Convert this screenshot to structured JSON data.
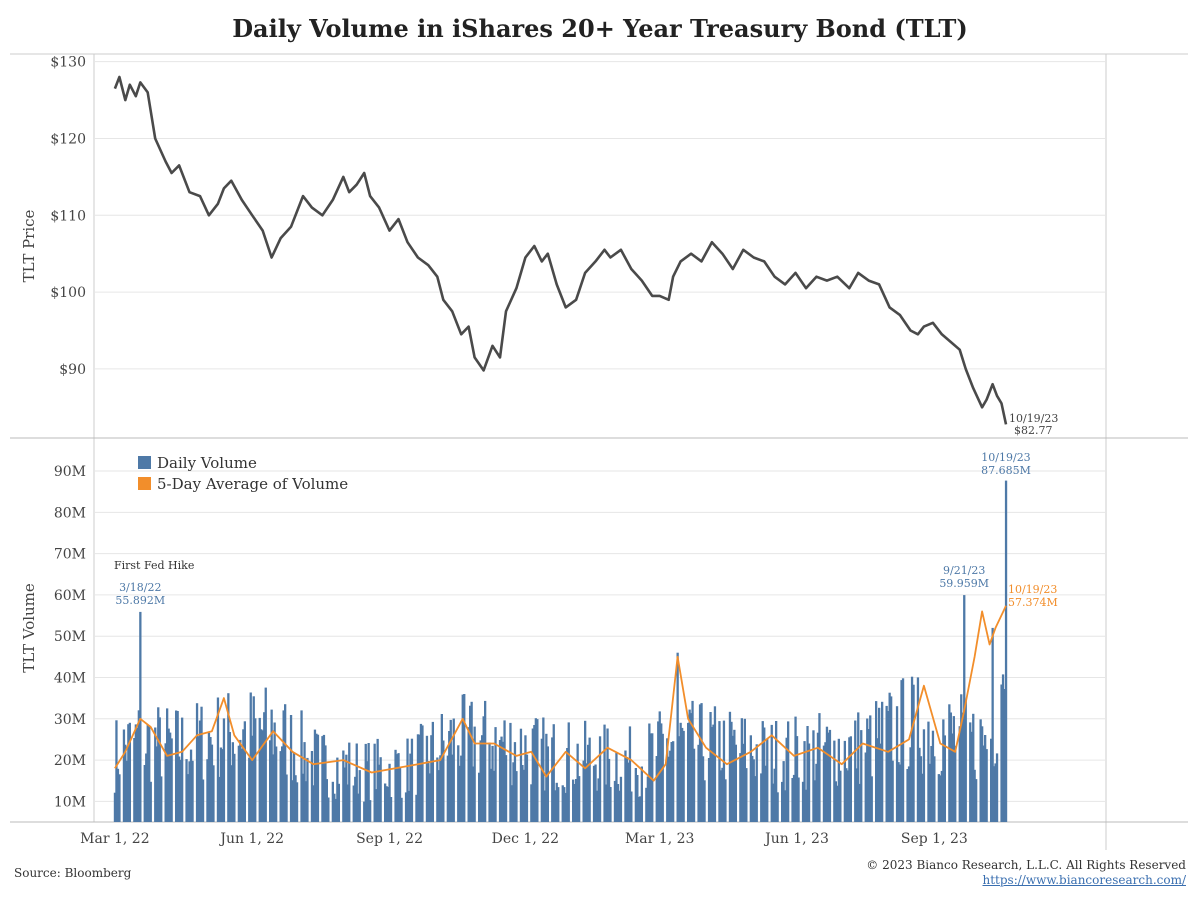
{
  "title": "Daily Volume in iShares 20+ Year Treasury Bond (TLT)",
  "footer": {
    "source": "Source: Bloomberg",
    "copyright": "© 2023 Bianco Research, L.L.C. All Rights Reserved",
    "url": "https://www.biancoresearch.com/"
  },
  "colors": {
    "price_line": "#4a4a4a",
    "daily_volume": "#4e79a7",
    "avg_volume": "#f28e2b",
    "grid": "#e6e6e6",
    "divider": "#bbbbbb"
  },
  "chart_data": [
    {
      "type": "line",
      "ylabel": "TLT Price",
      "ylim": [
        81,
        131
      ],
      "yticks": [
        90,
        100,
        110,
        120,
        130
      ],
      "ytick_labels": [
        "$90",
        "$100",
        "$110",
        "$120",
        "$130"
      ],
      "x_ticks": [
        "Mar 1, 22",
        "Jun 1, 22",
        "Sep 1, 22",
        "Dec 1, 22",
        "Mar 1, 23",
        "Jun 1, 23",
        "Sep 1, 23"
      ],
      "series": [
        {
          "points": [
            [
              "2022-03-01",
              126.5
            ],
            [
              "2022-03-04",
              128.0
            ],
            [
              "2022-03-08",
              125.0
            ],
            [
              "2022-03-11",
              127.0
            ],
            [
              "2022-03-15",
              125.5
            ],
            [
              "2022-03-18",
              127.3
            ],
            [
              "2022-03-23",
              126.0
            ],
            [
              "2022-03-28",
              120.0
            ],
            [
              "2022-04-04",
              117.0
            ],
            [
              "2022-04-08",
              115.5
            ],
            [
              "2022-04-13",
              116.5
            ],
            [
              "2022-04-20",
              113.0
            ],
            [
              "2022-04-27",
              112.5
            ],
            [
              "2022-05-03",
              110.0
            ],
            [
              "2022-05-09",
              111.5
            ],
            [
              "2022-05-13",
              113.5
            ],
            [
              "2022-05-18",
              114.5
            ],
            [
              "2022-05-25",
              112.0
            ],
            [
              "2022-06-01",
              110.0
            ],
            [
              "2022-06-08",
              108.0
            ],
            [
              "2022-06-14",
              104.5
            ],
            [
              "2022-06-20",
              107.0
            ],
            [
              "2022-06-27",
              108.5
            ],
            [
              "2022-07-05",
              112.5
            ],
            [
              "2022-07-11",
              111.0
            ],
            [
              "2022-07-18",
              110.0
            ],
            [
              "2022-07-25",
              112.0
            ],
            [
              "2022-08-01",
              115.0
            ],
            [
              "2022-08-05",
              113.0
            ],
            [
              "2022-08-10",
              114.0
            ],
            [
              "2022-08-15",
              115.5
            ],
            [
              "2022-08-19",
              112.5
            ],
            [
              "2022-08-25",
              111.0
            ],
            [
              "2022-09-01",
              108.0
            ],
            [
              "2022-09-07",
              109.5
            ],
            [
              "2022-09-13",
              106.5
            ],
            [
              "2022-09-20",
              104.5
            ],
            [
              "2022-09-27",
              103.5
            ],
            [
              "2022-10-03",
              102.0
            ],
            [
              "2022-10-07",
              99.0
            ],
            [
              "2022-10-13",
              97.5
            ],
            [
              "2022-10-19",
              94.5
            ],
            [
              "2022-10-24",
              95.5
            ],
            [
              "2022-10-28",
              91.5
            ],
            [
              "2022-11-03",
              89.8
            ],
            [
              "2022-11-09",
              93.0
            ],
            [
              "2022-11-14",
              91.5
            ],
            [
              "2022-11-18",
              97.5
            ],
            [
              "2022-11-25",
              100.5
            ],
            [
              "2022-12-01",
              104.5
            ],
            [
              "2022-12-07",
              106.0
            ],
            [
              "2022-12-12",
              104.0
            ],
            [
              "2022-12-16",
              105.0
            ],
            [
              "2022-12-22",
              101.0
            ],
            [
              "2022-12-28",
              98.0
            ],
            [
              "2023-01-04",
              99.0
            ],
            [
              "2023-01-10",
              102.5
            ],
            [
              "2023-01-17",
              104.0
            ],
            [
              "2023-01-23",
              105.5
            ],
            [
              "2023-01-27",
              104.5
            ],
            [
              "2023-02-03",
              105.5
            ],
            [
              "2023-02-10",
              103.0
            ],
            [
              "2023-02-17",
              101.5
            ],
            [
              "2023-02-24",
              99.5
            ],
            [
              "2023-03-01",
              99.5
            ],
            [
              "2023-03-07",
              99.0
            ],
            [
              "2023-03-10",
              102.0
            ],
            [
              "2023-03-15",
              104.0
            ],
            [
              "2023-03-22",
              105.0
            ],
            [
              "2023-03-29",
              104.0
            ],
            [
              "2023-04-05",
              106.5
            ],
            [
              "2023-04-12",
              105.0
            ],
            [
              "2023-04-19",
              103.0
            ],
            [
              "2023-04-26",
              105.5
            ],
            [
              "2023-05-03",
              104.5
            ],
            [
              "2023-05-10",
              104.0
            ],
            [
              "2023-05-17",
              102.0
            ],
            [
              "2023-05-24",
              101.0
            ],
            [
              "2023-05-31",
              102.5
            ],
            [
              "2023-06-07",
              100.5
            ],
            [
              "2023-06-14",
              102.0
            ],
            [
              "2023-06-21",
              101.5
            ],
            [
              "2023-06-28",
              102.0
            ],
            [
              "2023-07-06",
              100.5
            ],
            [
              "2023-07-12",
              102.5
            ],
            [
              "2023-07-19",
              101.5
            ],
            [
              "2023-07-26",
              101.0
            ],
            [
              "2023-08-02",
              98.0
            ],
            [
              "2023-08-09",
              97.0
            ],
            [
              "2023-08-16",
              95.0
            ],
            [
              "2023-08-21",
              94.5
            ],
            [
              "2023-08-25",
              95.5
            ],
            [
              "2023-08-31",
              96.0
            ],
            [
              "2023-09-06",
              94.5
            ],
            [
              "2023-09-12",
              93.5
            ],
            [
              "2023-09-18",
              92.5
            ],
            [
              "2023-09-22",
              90.0
            ],
            [
              "2023-09-27",
              87.5
            ],
            [
              "2023-10-03",
              85.0
            ],
            [
              "2023-10-06",
              86.0
            ],
            [
              "2023-10-10",
              88.0
            ],
            [
              "2023-10-13",
              86.5
            ],
            [
              "2023-10-16",
              85.5
            ],
            [
              "2023-10-19",
              82.77
            ]
          ]
        }
      ],
      "annotations": [
        {
          "date_label": "10/19/23",
          "value_label": "$82.77",
          "x": "2023-10-19",
          "y": 82.77
        }
      ]
    },
    {
      "type": "bar",
      "ylabel": "TLT Volume",
      "ylim": [
        5,
        98
      ],
      "yticks": [
        10,
        20,
        30,
        40,
        50,
        60,
        70,
        80,
        90
      ],
      "ytick_labels": [
        "10M",
        "20M",
        "30M",
        "40M",
        "50M",
        "60M",
        "70M",
        "80M",
        "90M"
      ],
      "legend_position": "top-left",
      "series": [
        {
          "name": "Daily Volume",
          "type": "bar",
          "units": "M shares",
          "approximate": true,
          "anchors": [
            [
              "2022-03-01",
              22
            ],
            [
              "2022-03-18",
              55.892
            ],
            [
              "2022-04-15",
              24
            ],
            [
              "2022-05-13",
              27
            ],
            [
              "2022-06-15",
              28
            ],
            [
              "2022-07-15",
              20
            ],
            [
              "2022-08-15",
              18
            ],
            [
              "2022-09-15",
              19
            ],
            [
              "2022-10-15",
              26
            ],
            [
              "2022-11-15",
              25
            ],
            [
              "2022-12-15",
              22
            ],
            [
              "2023-01-15",
              21
            ],
            [
              "2023-02-15",
              20
            ],
            [
              "2023-03-13",
              46
            ],
            [
              "2023-04-15",
              24
            ],
            [
              "2023-05-15",
              22
            ],
            [
              "2023-06-15",
              23
            ],
            [
              "2023-07-15",
              24
            ],
            [
              "2023-08-15",
              30
            ],
            [
              "2023-09-21",
              59.959
            ],
            [
              "2023-10-10",
              52
            ],
            [
              "2023-10-19",
              87.685
            ]
          ]
        },
        {
          "name": "5-Day Average of Volume",
          "type": "line",
          "units": "M shares",
          "approximate": true,
          "points": [
            [
              "2022-03-01",
              18
            ],
            [
              "2022-03-08",
              22
            ],
            [
              "2022-03-18",
              30
            ],
            [
              "2022-03-25",
              28
            ],
            [
              "2022-04-05",
              21
            ],
            [
              "2022-04-15",
              22
            ],
            [
              "2022-04-25",
              26
            ],
            [
              "2022-05-05",
              27
            ],
            [
              "2022-05-13",
              35
            ],
            [
              "2022-05-20",
              26
            ],
            [
              "2022-06-01",
              20
            ],
            [
              "2022-06-15",
              27
            ],
            [
              "2022-06-28",
              22
            ],
            [
              "2022-07-12",
              19
            ],
            [
              "2022-08-01",
              20
            ],
            [
              "2022-08-20",
              17
            ],
            [
              "2022-09-05",
              18
            ],
            [
              "2022-09-20",
              19
            ],
            [
              "2022-10-05",
              20
            ],
            [
              "2022-10-20",
              30
            ],
            [
              "2022-10-28",
              24
            ],
            [
              "2022-11-10",
              24
            ],
            [
              "2022-11-25",
              21
            ],
            [
              "2022-12-05",
              22
            ],
            [
              "2022-12-15",
              16
            ],
            [
              "2022-12-28",
              22
            ],
            [
              "2023-01-10",
              18
            ],
            [
              "2023-01-25",
              23
            ],
            [
              "2023-02-10",
              20
            ],
            [
              "2023-02-25",
              15
            ],
            [
              "2023-03-05",
              19
            ],
            [
              "2023-03-13",
              45
            ],
            [
              "2023-03-20",
              30
            ],
            [
              "2023-04-01",
              23
            ],
            [
              "2023-04-15",
              19
            ],
            [
              "2023-05-01",
              22
            ],
            [
              "2023-05-15",
              26
            ],
            [
              "2023-05-30",
              21
            ],
            [
              "2023-06-15",
              23
            ],
            [
              "2023-07-01",
              19
            ],
            [
              "2023-07-15",
              24
            ],
            [
              "2023-08-01",
              22
            ],
            [
              "2023-08-15",
              25
            ],
            [
              "2023-08-25",
              38
            ],
            [
              "2023-09-05",
              24
            ],
            [
              "2023-09-15",
              22
            ],
            [
              "2023-09-21",
              32
            ],
            [
              "2023-09-28",
              45
            ],
            [
              "2023-10-03",
              56
            ],
            [
              "2023-10-08",
              48
            ],
            [
              "2023-10-12",
              52
            ],
            [
              "2023-10-19",
              57.374
            ]
          ]
        }
      ],
      "annotations": [
        {
          "text": "First Fed Hike"
        },
        {
          "date_label": "3/18/22",
          "value_label": "55.892M",
          "x": "2022-03-18",
          "y": 55.892,
          "series": "Daily Volume"
        },
        {
          "date_label": "9/21/23",
          "value_label": "59.959M",
          "x": "2023-09-21",
          "y": 59.959,
          "series": "Daily Volume"
        },
        {
          "date_label": "10/19/23",
          "value_label": "87.685M",
          "x": "2023-10-19",
          "y": 87.685,
          "series": "Daily Volume"
        },
        {
          "date_label": "10/19/23",
          "value_label": "57.374M",
          "x": "2023-10-19",
          "y": 57.374,
          "series": "5-Day Average of Volume"
        }
      ]
    }
  ]
}
